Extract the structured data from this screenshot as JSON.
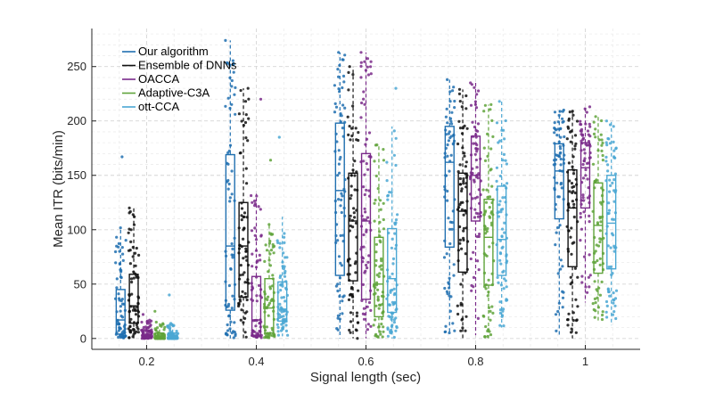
{
  "chart_data": {
    "type": "boxplot",
    "title": "",
    "xlabel": "Signal length (sec)",
    "ylabel": "Mean ITR (bits/min)",
    "ylim": [
      -10,
      285
    ],
    "xlim": [
      0.1,
      1.1
    ],
    "yticks": [
      0,
      50,
      100,
      150,
      200,
      250
    ],
    "categories": [
      "0.2",
      "0.4",
      "0.6",
      "0.8",
      "1"
    ],
    "category_values": [
      0.2,
      0.4,
      0.6,
      0.8,
      1.0
    ],
    "grid": true,
    "legend_position": "top-left",
    "series": [
      {
        "name": "Our algorithm",
        "color": "#1f6fb0",
        "boxes": [
          {
            "q1": 4,
            "median": 17,
            "q3": 45,
            "whisker_low": 0,
            "whisker_high": 102,
            "max": 167
          },
          {
            "q1": 26,
            "median": 85,
            "q3": 169,
            "whisker_low": 0,
            "whisker_high": 274,
            "max": 274
          },
          {
            "q1": 58,
            "median": 136,
            "q3": 198,
            "whisker_low": 0,
            "whisker_high": 263,
            "max": 263
          },
          {
            "q1": 84,
            "median": 162,
            "q3": 195,
            "whisker_low": 5,
            "whisker_high": 238,
            "max": 238
          },
          {
            "q1": 110,
            "median": 154,
            "q3": 179,
            "whisker_low": 3,
            "whisker_high": 210,
            "max": 210
          }
        ]
      },
      {
        "name": "Ensemble of DNNs",
        "color": "#111111",
        "boxes": [
          {
            "q1": 14,
            "median": 30,
            "q3": 59,
            "whisker_low": 0,
            "whisker_high": 120,
            "max": 120
          },
          {
            "q1": 38,
            "median": 85,
            "q3": 125,
            "whisker_low": 0,
            "whisker_high": 230,
            "max": 230
          },
          {
            "q1": 53,
            "median": 108,
            "q3": 152,
            "whisker_low": 0,
            "whisker_high": 250,
            "max": 250
          },
          {
            "q1": 61,
            "median": 117,
            "q3": 152,
            "whisker_low": 0,
            "whisker_high": 229,
            "max": 229
          },
          {
            "q1": 66,
            "median": 120,
            "q3": 155,
            "whisker_low": 0,
            "whisker_high": 209,
            "max": 209
          }
        ]
      },
      {
        "name": "OACCA",
        "color": "#7a2a8a",
        "boxes": [
          {
            "q1": 1,
            "median": 3,
            "q3": 7,
            "whisker_low": 0,
            "whisker_high": 17,
            "max": 22
          },
          {
            "q1": 3,
            "median": 17,
            "q3": 57,
            "whisker_low": 0,
            "whisker_high": 133,
            "max": 220
          },
          {
            "q1": 36,
            "median": 108,
            "q3": 170,
            "whisker_low": 0,
            "whisker_high": 263,
            "max": 263
          },
          {
            "q1": 108,
            "median": 150,
            "q3": 186,
            "whisker_low": 3,
            "whisker_high": 235,
            "max": 235
          },
          {
            "q1": 120,
            "median": 157,
            "q3": 180,
            "whisker_low": 33,
            "whisker_high": 213,
            "max": 213
          }
        ]
      },
      {
        "name": "Adaptive-C3A",
        "color": "#5fa33a",
        "boxes": [
          {
            "q1": 0,
            "median": 2,
            "q3": 5,
            "whisker_low": 0,
            "whisker_high": 15,
            "max": 25
          },
          {
            "q1": 5,
            "median": 28,
            "q3": 55,
            "whisker_low": 0,
            "whisker_high": 105,
            "max": 164
          },
          {
            "q1": 20,
            "median": 50,
            "q3": 93,
            "whisker_low": 0,
            "whisker_high": 178,
            "max": 178
          },
          {
            "q1": 49,
            "median": 93,
            "q3": 128,
            "whisker_low": 0,
            "whisker_high": 215,
            "max": 215
          },
          {
            "q1": 60,
            "median": 104,
            "q3": 143,
            "whisker_low": 16,
            "whisker_high": 204,
            "max": 204
          }
        ]
      },
      {
        "name": "ott-CCA",
        "color": "#4aa7d3",
        "boxes": [
          {
            "q1": 0,
            "median": 2,
            "q3": 5,
            "whisker_low": 0,
            "whisker_high": 14,
            "max": 40
          },
          {
            "q1": 16,
            "median": 27,
            "q3": 52,
            "whisker_low": 2,
            "whisker_high": 112,
            "max": 185
          },
          {
            "q1": 24,
            "median": 55,
            "q3": 101,
            "whisker_low": 0,
            "whisker_high": 195,
            "max": 230
          },
          {
            "q1": 58,
            "median": 91,
            "q3": 140,
            "whisker_low": 10,
            "whisker_high": 218,
            "max": 218
          },
          {
            "q1": 64,
            "median": 106,
            "q3": 150,
            "whisker_low": 12,
            "whisker_high": 200,
            "max": 200
          }
        ]
      }
    ]
  }
}
